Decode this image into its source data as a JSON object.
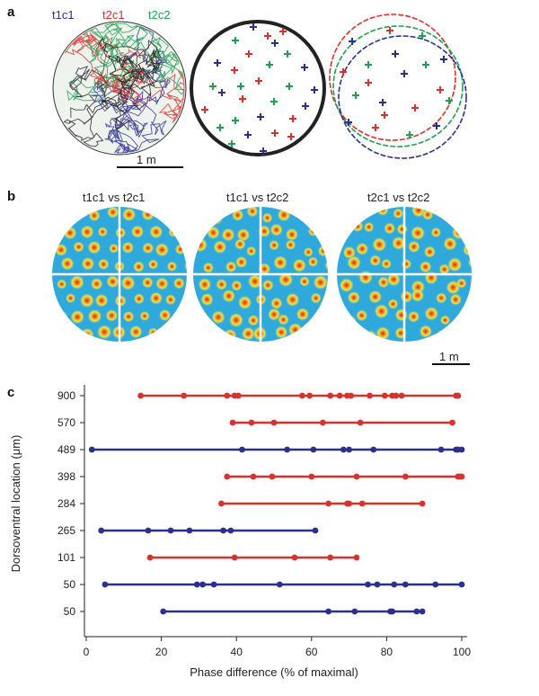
{
  "panel_a": {
    "label": "a",
    "legend": [
      {
        "name": "t1c1",
        "color": "#2b2f8f"
      },
      {
        "name": "t2c1",
        "color": "#d8322d"
      },
      {
        "name": "t2c2",
        "color": "#20a050"
      }
    ],
    "scale_bar": "1 m"
  },
  "panel_b": {
    "label": "b",
    "comparisons": [
      {
        "left": "t1c1",
        "vs": "vs",
        "right": "t2c1"
      },
      {
        "left": "t1c1",
        "vs": "vs",
        "right": "t2c2"
      },
      {
        "left": "t2c1",
        "vs": "vs",
        "right": "t2c2"
      }
    ],
    "scale_bar": "1 m"
  },
  "panel_c": {
    "label": "c"
  },
  "chart_data": {
    "type": "scatter",
    "title": "",
    "xlabel": "Phase difference (% of maximal)",
    "ylabel": "Dorsoventral location (μm)",
    "xlim": [
      0,
      100
    ],
    "xticks": [
      0,
      20,
      40,
      60,
      80,
      100
    ],
    "grid": false,
    "colors": {
      "red": "#d8322d",
      "blue": "#2b2f8f"
    },
    "rows": [
      {
        "location": "900",
        "color": "red",
        "values": [
          14.5,
          26,
          37.5,
          39.5,
          40.5,
          57.5,
          59.5,
          65,
          67.5,
          69.5,
          70.5,
          75.5,
          79.5,
          81.5,
          82.5,
          84,
          98.5,
          99
        ]
      },
      {
        "location": "570",
        "color": "red",
        "values": [
          39,
          44,
          50,
          63,
          73,
          97.5
        ]
      },
      {
        "location": "489",
        "color": "blue",
        "values": [
          1.5,
          41.5,
          53.5,
          60.5,
          68.5,
          70,
          76.5,
          94.5,
          98.5,
          99,
          100
        ]
      },
      {
        "location": "398",
        "color": "red",
        "values": [
          37.5,
          44.5,
          49.5,
          60,
          72,
          85,
          99,
          99.5,
          100
        ]
      },
      {
        "location": "284",
        "color": "red",
        "values": [
          36,
          64.5,
          69.5,
          70,
          73.5,
          89.5
        ]
      },
      {
        "location": "265",
        "color": "blue",
        "values": [
          4,
          16.5,
          22.5,
          27.5,
          36.5,
          38.5,
          61
        ]
      },
      {
        "location": "101",
        "color": "red",
        "values": [
          17,
          39.5,
          55.5,
          65,
          72
        ]
      },
      {
        "location": "50",
        "color": "blue",
        "values": [
          5,
          29.5,
          31,
          34,
          51.5,
          75,
          77.5,
          82,
          85,
          93,
          100
        ]
      },
      {
        "location": "50",
        "color": "blue",
        "values": [
          20.5,
          64.5,
          71.5,
          81,
          81.5,
          88,
          89.5
        ]
      }
    ]
  }
}
